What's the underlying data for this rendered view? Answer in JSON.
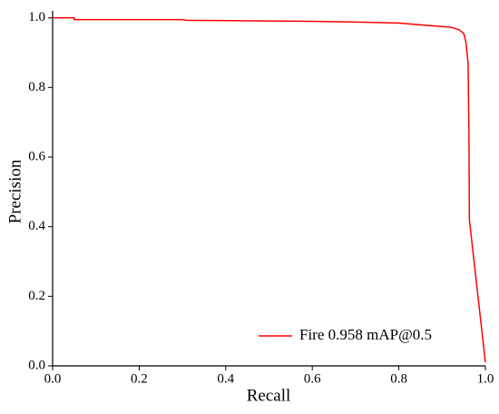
{
  "chart_data": {
    "type": "line",
    "x_label": "Recall",
    "y_label": "Precision",
    "x": [
      0,
      0.05,
      0.05,
      0.3,
      0.31,
      0.6,
      0.7,
      0.8,
      0.85,
      0.9,
      0.92,
      0.93,
      0.94,
      0.95,
      0.955,
      0.96,
      0.962,
      0.963,
      1.0
    ],
    "series": [
      {
        "name": "Fire 0.958 mAP@0.5",
        "color": "#ff0000",
        "values": [
          1.0,
          1.0,
          0.995,
          0.995,
          0.993,
          0.99,
          0.988,
          0.985,
          0.98,
          0.975,
          0.973,
          0.97,
          0.965,
          0.955,
          0.93,
          0.87,
          0.67,
          0.42,
          0.01
        ]
      }
    ],
    "xlim": [
      0,
      1
    ],
    "ylim": [
      0,
      1.02
    ],
    "xticks": [
      {
        "value": 0,
        "label": "0.0"
      },
      0.2,
      0.4,
      0.6,
      0.8,
      {
        "value": 1,
        "label": "1.0"
      }
    ],
    "yticks": [
      {
        "value": 0,
        "label": "0.0"
      },
      0.2,
      0.4,
      0.6,
      0.8,
      {
        "value": 1,
        "label": "1.0"
      }
    ],
    "legend": "lower-right"
  }
}
